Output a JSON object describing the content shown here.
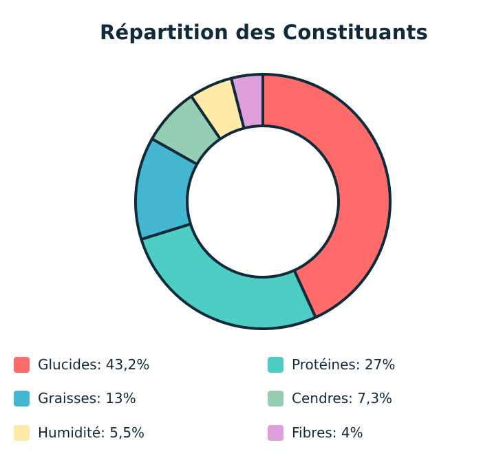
{
  "chart_data": {
    "type": "pie",
    "variant": "donut",
    "title": "Répartition des Constituants",
    "categories": [
      "Glucides",
      "Protéines",
      "Graisses",
      "Cendres",
      "Humidité",
      "Fibres"
    ],
    "values": [
      43.2,
      27,
      13,
      7.3,
      5.5,
      4
    ],
    "value_labels": [
      "43,2%",
      "27%",
      "13%",
      "7,3%",
      "5,5%",
      "4%"
    ],
    "colors": [
      "#ff6b6b",
      "#4ecdc4",
      "#45b7d1",
      "#96ceb4",
      "#ffeaa7",
      "#dda0dd"
    ],
    "border_color": "#0f2a3a",
    "legend": "bottom"
  },
  "legend_items": [
    {
      "text": "Glucides: 43,2%"
    },
    {
      "text": "Protéines: 27%"
    },
    {
      "text": "Graisses: 13%"
    },
    {
      "text": "Cendres: 7,3%"
    },
    {
      "text": "Humidité: 5,5%"
    },
    {
      "text": "Fibres: 4%"
    }
  ]
}
